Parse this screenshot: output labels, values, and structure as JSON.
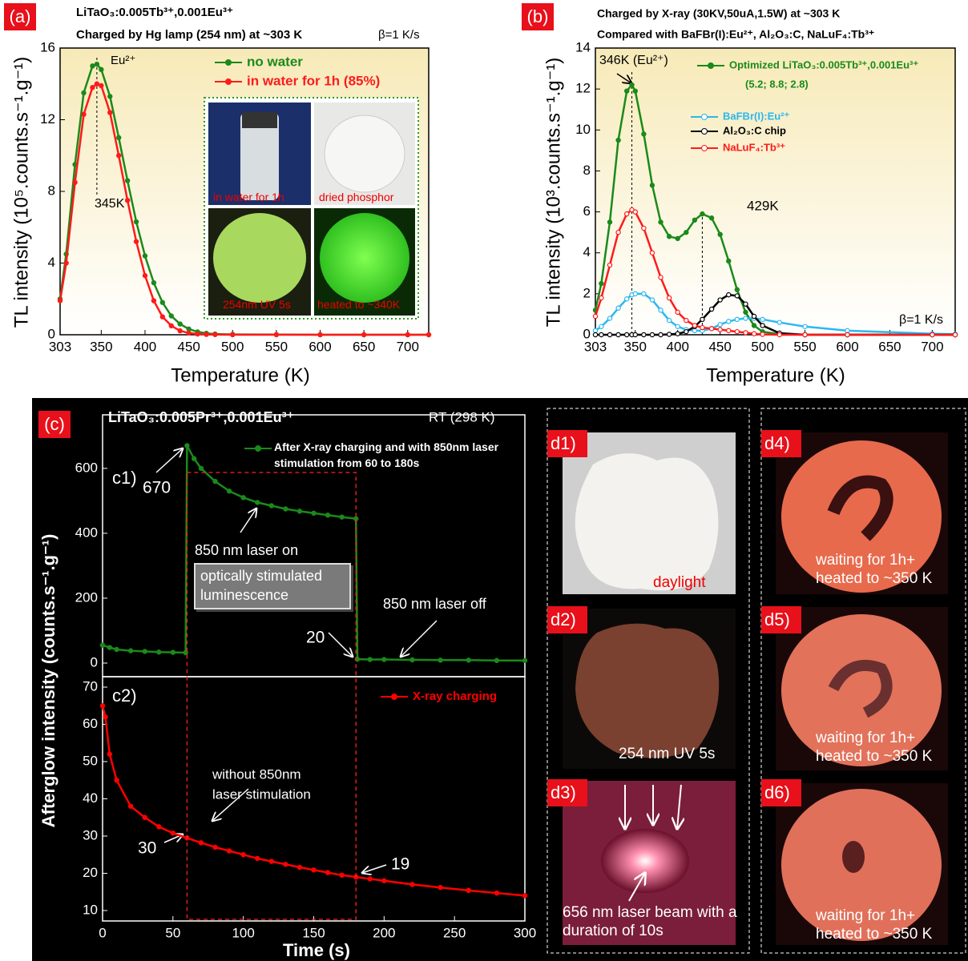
{
  "chart_data": [
    {
      "type": "line",
      "title": "LiTaO₃:0.005Tb³⁺,0.001Eu³⁺",
      "subtitle": "Charged by Hg lamp (254 nm) at ~303 K",
      "xlabel": "Temperature (K)",
      "ylabel": "TL intensity (10⁵.counts.s⁻¹.g⁻¹)",
      "x": [
        303,
        310,
        320,
        330,
        340,
        345,
        350,
        360,
        370,
        380,
        390,
        400,
        410,
        420,
        430,
        440,
        450,
        460,
        470,
        480,
        500,
        550,
        600,
        650,
        700,
        724
      ],
      "series": [
        {
          "name": "no water",
          "color": "#1a8a1a",
          "values": [
            2.0,
            4.5,
            9.5,
            13.5,
            15.0,
            15.1,
            14.8,
            13.3,
            11.0,
            8.6,
            6.3,
            4.4,
            2.9,
            1.8,
            1.05,
            0.6,
            0.32,
            0.16,
            0.08,
            0.04,
            0.02,
            0.01,
            0,
            0,
            0,
            0
          ]
        },
        {
          "name": "in water for 1h (85%)",
          "color": "#ff1a1a",
          "values": [
            1.9,
            4.0,
            8.5,
            12.3,
            13.8,
            14.0,
            13.9,
            12.4,
            10.0,
            7.5,
            5.2,
            3.3,
            1.9,
            1.0,
            0.5,
            0.22,
            0.1,
            0.04,
            0.02,
            0.01,
            0,
            0,
            0,
            0,
            0,
            0
          ]
        }
      ],
      "xlim": [
        303,
        724
      ],
      "ylim": [
        0,
        16
      ],
      "xticks": [
        303,
        350,
        400,
        450,
        500,
        550,
        600,
        650,
        700
      ],
      "yticks": [
        0,
        4,
        8,
        12,
        16
      ],
      "annotations": [
        "Eu²⁺",
        "β=1 K/s"
      ],
      "peaks": [
        {
          "label": "345K",
          "x": 345
        }
      ]
    },
    {
      "type": "line",
      "title": "Charged by X-ray (30KV,50uA,1.5W) at ~303 K",
      "subtitle": "Compared with BaFBr(I):Eu²⁺, Al₂O₃:C, NaLuF₄:Tb³⁺",
      "xlabel": "Temperature (K)",
      "ylabel": "TL intensity (10³.counts.s⁻¹.g⁻¹)",
      "x": [
        303,
        310,
        320,
        330,
        340,
        346,
        350,
        360,
        370,
        380,
        390,
        400,
        410,
        420,
        429,
        440,
        450,
        460,
        470,
        480,
        490,
        500,
        520,
        550,
        600,
        700,
        727
      ],
      "series": [
        {
          "name": "Optimized LiTaO₃:0.005Tb³⁺,0.001Eu³⁺",
          "color": "#1a8a1a",
          "marker": "filled",
          "values": [
            1.2,
            2.5,
            5.5,
            9.5,
            11.9,
            12.2,
            11.9,
            9.8,
            7.3,
            5.5,
            4.8,
            4.7,
            5.0,
            5.6,
            5.9,
            5.7,
            4.9,
            3.6,
            2.2,
            1.1,
            0.45,
            0.15,
            0.03,
            0,
            0,
            0,
            0
          ]
        },
        {
          "name": "BaFBr(I):Eu²⁺",
          "color": "#2ab8f0",
          "marker": "open",
          "values": [
            0.2,
            0.4,
            0.8,
            1.3,
            1.75,
            1.95,
            2.0,
            2.0,
            1.7,
            1.2,
            0.7,
            0.4,
            0.25,
            0.2,
            0.2,
            0.3,
            0.5,
            0.65,
            0.75,
            0.8,
            0.8,
            0.75,
            0.6,
            0.4,
            0.2,
            0.05,
            0.03
          ]
        },
        {
          "name": "Al₂O₃:C chip",
          "color": "#000000",
          "marker": "open",
          "values": [
            0,
            0,
            0,
            0,
            0,
            0,
            0,
            0,
            0,
            0,
            0.02,
            0.05,
            0.15,
            0.4,
            0.75,
            1.25,
            1.7,
            1.95,
            1.9,
            1.5,
            0.9,
            0.45,
            0.08,
            0,
            0,
            0,
            0
          ]
        },
        {
          "name": "NaLuF₄:Tb³⁺",
          "color": "#ff1a1a",
          "marker": "open",
          "values": [
            0.9,
            1.8,
            3.4,
            5.0,
            5.9,
            6.1,
            6.0,
            5.2,
            4.0,
            2.8,
            1.8,
            1.1,
            0.7,
            0.45,
            0.35,
            0.3,
            0.25,
            0.2,
            0.15,
            0.1,
            0.05,
            0.02,
            0,
            0,
            0,
            0,
            0
          ]
        }
      ],
      "xlim": [
        303,
        727
      ],
      "ylim": [
        0,
        14
      ],
      "xticks": [
        303,
        350,
        400,
        450,
        500,
        550,
        600,
        650,
        700
      ],
      "yticks": [
        0,
        2,
        4,
        6,
        8,
        10,
        12,
        14
      ],
      "annotations": [
        "(5.2; 8.8; 2.8)",
        "β=1 K/s"
      ],
      "peaks": [
        {
          "label": "346K (Eu²⁺)",
          "x": 346
        },
        {
          "label": "429K",
          "x": 429
        }
      ]
    },
    {
      "type": "line",
      "title": "LiTaO₃:0.005Pr³⁺,0.001Eu³⁺",
      "subtitle": "RT (298 K)",
      "tag": "c1)",
      "ylabel": "Afterglow intensity (counts.s⁻¹.g⁻¹)",
      "x": [
        0,
        5,
        10,
        20,
        30,
        40,
        50,
        59,
        60,
        65,
        70,
        80,
        90,
        100,
        110,
        120,
        130,
        140,
        150,
        160,
        170,
        180,
        181,
        190,
        200,
        220,
        240,
        260,
        280,
        300
      ],
      "series": [
        {
          "name": "After X-ray charging and with 850nm laser stimulation from 60 to 180s",
          "color": "#1a8a1a",
          "values": [
            55,
            48,
            42,
            38,
            36,
            34,
            33,
            32,
            670,
            630,
            600,
            560,
            530,
            510,
            495,
            485,
            475,
            468,
            462,
            456,
            450,
            445,
            12,
            11,
            11,
            10,
            9,
            9,
            8,
            8
          ]
        }
      ],
      "xlim": [
        0,
        300
      ],
      "ylim": [
        -42,
        765
      ],
      "yticks": [
        0,
        200,
        400,
        600
      ],
      "annotations": [
        "670",
        "850 nm laser on",
        "optically stimulated luminescence",
        "20",
        "850 nm laser off"
      ]
    },
    {
      "type": "line",
      "tag": "c2)",
      "xlabel": "Time (s)",
      "x": [
        0,
        2,
        5,
        10,
        20,
        30,
        40,
        50,
        60,
        70,
        80,
        90,
        100,
        110,
        120,
        130,
        140,
        150,
        160,
        170,
        180,
        190,
        200,
        220,
        240,
        260,
        280,
        300
      ],
      "series": [
        {
          "name": "X-ray charging",
          "color": "#ff0000",
          "values": [
            65,
            62,
            52,
            45,
            38,
            35,
            32.5,
            30.8,
            29.5,
            28.2,
            27,
            26,
            25,
            24,
            23.2,
            22.4,
            21.6,
            20.9,
            20.2,
            19.5,
            19,
            18.5,
            18,
            17,
            16.2,
            15.4,
            14.7,
            14
          ]
        }
      ],
      "xlim": [
        0,
        300
      ],
      "ylim": [
        7.2,
        72.8
      ],
      "xticks": [
        0,
        50,
        100,
        150,
        200,
        250,
        300
      ],
      "yticks": [
        10,
        20,
        30,
        40,
        50,
        60,
        70
      ],
      "annotations": [
        "without 850nm",
        "laser stimulation",
        "30",
        "19"
      ]
    }
  ],
  "panel_tags": [
    "(a)",
    "(b)",
    "(c)"
  ],
  "inset": [
    "in  water for 1h",
    "dried phosphor",
    "254nm UV 5s",
    "heated to ~340K"
  ],
  "photos": [
    {
      "tag": "d1)",
      "caption": "daylight"
    },
    {
      "tag": "d2)",
      "caption": "254 nm UV 5s"
    },
    {
      "tag": "d3)",
      "caption": "656 nm laser beam with a duration of 10s"
    },
    {
      "tag": "d4)",
      "caption": "waiting for 1h+ heated to ~350 K"
    },
    {
      "tag": "d5)",
      "caption": "waiting for 1h+ heated to ~350 K"
    },
    {
      "tag": "d6)",
      "caption": "waiting for 1h+ heated to ~350 K"
    }
  ]
}
